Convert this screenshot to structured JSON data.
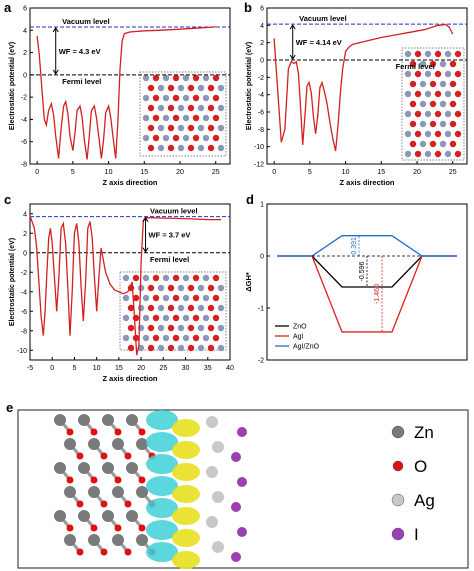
{
  "panels": {
    "a": "a",
    "b": "b",
    "c": "c",
    "d": "d",
    "e": "e"
  },
  "chart_data": [
    {
      "id": "a",
      "type": "line",
      "xlabel": "Z axis direction",
      "ylabel": "Electrostatic potential (eV)",
      "xlim": [
        -1,
        27
      ],
      "ylim": [
        -8,
        6
      ],
      "xticks": [
        0,
        5,
        10,
        15,
        20,
        25
      ],
      "yticks": [
        -8,
        -6,
        -4,
        -2,
        0,
        2,
        4,
        6
      ],
      "vacuum_level": 4.3,
      "fermi_level": 0,
      "vacuum_label": "Vacuum level",
      "fermi_label": "Fermi level",
      "wf_label": "WF = 4.3 eV",
      "x": [
        0,
        0.3,
        0.7,
        1.0,
        1.3,
        1.6,
        2.0,
        2.3,
        2.6,
        3.0,
        3.3,
        3.7,
        4.0,
        4.3,
        4.6,
        5.0,
        5.3,
        5.6,
        6.0,
        6.3,
        6.6,
        7.0,
        7.3,
        7.6,
        8.0,
        8.3,
        8.6,
        9.0,
        9.3,
        9.6,
        10.0,
        10.3,
        10.6,
        11.0,
        11.3,
        11.6,
        11.9,
        12.2,
        13,
        15,
        17,
        20,
        23,
        25
      ],
      "y": [
        3.5,
        1.8,
        -1.5,
        -4.0,
        -4.5,
        -3.2,
        -2.6,
        -3.6,
        -5.5,
        -7.5,
        -5.2,
        -2.8,
        -2.4,
        -3.5,
        -5.5,
        -6.8,
        -5.2,
        -3.2,
        -2.8,
        -3.8,
        -5.8,
        -7.6,
        -5.5,
        -3.2,
        -2.8,
        -3.8,
        -5.4,
        -7.5,
        -5.8,
        -3.4,
        -2.8,
        -3.8,
        -5.5,
        -7.5,
        -4.2,
        0.5,
        3.0,
        3.7,
        3.85,
        3.95,
        4.0,
        4.1,
        4.22,
        4.3
      ]
    },
    {
      "id": "b",
      "type": "line",
      "xlabel": "Z axis direction",
      "ylabel": "Electrostatic potential (eV)",
      "xlim": [
        -1,
        27
      ],
      "ylim": [
        -12,
        6
      ],
      "xticks": [
        0,
        5,
        10,
        15,
        20,
        25
      ],
      "yticks": [
        -12,
        -10,
        -8,
        -6,
        -4,
        -2,
        0,
        2,
        4,
        6
      ],
      "vacuum_level": 4.14,
      "fermi_level": 0,
      "vacuum_label": "Vacuum level",
      "fermi_label": "Fermi level",
      "wf_label": "WF = 4.14 eV",
      "x": [
        0,
        0.5,
        1.0,
        1.5,
        2.0,
        2.4,
        2.8,
        3.1,
        3.4,
        3.7,
        4.0,
        4.3,
        4.6,
        4.9,
        5.2,
        5.5,
        5.8,
        6.1,
        6.4,
        6.7,
        7.0,
        7.4,
        7.8,
        8.2,
        8.6,
        9.0,
        9.3,
        9.6,
        10.0,
        10.5,
        11,
        13,
        15,
        17,
        19,
        21,
        23,
        24,
        24.5,
        25
      ],
      "y": [
        2.5,
        -3.5,
        -9.5,
        -8.0,
        -1.0,
        -0.2,
        -0.4,
        -0.2,
        -1.5,
        -5.5,
        -9.8,
        -6.5,
        -3.0,
        -2.6,
        -3.8,
        -6.5,
        -8.5,
        -6.5,
        -3.2,
        -2.6,
        -3.5,
        -5.0,
        -7.2,
        -9.0,
        -10.5,
        -7.0,
        -3.5,
        -1.0,
        1.0,
        1.5,
        1.8,
        2.2,
        2.6,
        2.9,
        3.2,
        3.5,
        4.0,
        4.1,
        3.8,
        3.0
      ]
    },
    {
      "id": "c",
      "type": "line",
      "xlabel": "Z axis direction",
      "ylabel": "Electrostatic potential (eV)",
      "xlim": [
        -5,
        40
      ],
      "ylim": [
        -11,
        5
      ],
      "xticks": [
        -5,
        0,
        5,
        10,
        15,
        20,
        25,
        30,
        35,
        40
      ],
      "yticks": [
        -10,
        -8,
        -6,
        -4,
        -2,
        0,
        2,
        4
      ],
      "vacuum_level": 3.7,
      "fermi_level": 0,
      "vacuum_label": "Vacuum level",
      "fermi_label": "Fermi level",
      "wf_label": "WF = 3.7 eV",
      "x": [
        -5,
        -4.0,
        -3.5,
        -3.0,
        -2.5,
        -2.0,
        -1.6,
        -1.2,
        -0.8,
        -0.4,
        0,
        0.5,
        1.0,
        1.5,
        2.0,
        2.5,
        3.0,
        3.5,
        4.0,
        4.5,
        5.0,
        5.5,
        6.0,
        6.5,
        7.0,
        7.5,
        8.0,
        8.5,
        9.0,
        9.5,
        10.0,
        10.5,
        11.0,
        12,
        13,
        14,
        15,
        16,
        17,
        18,
        18.5,
        19.0,
        19.5,
        20.0,
        20.5,
        21,
        22,
        25,
        30,
        35,
        38
      ],
      "y": [
        3.8,
        2.5,
        0.5,
        -3.0,
        -6.5,
        -8.5,
        -6.0,
        -2.0,
        1.5,
        2.5,
        1.0,
        -2.5,
        -6.0,
        -2.5,
        2.5,
        3.0,
        1.0,
        -3.5,
        -8.5,
        -4.0,
        2.0,
        3.0,
        1.0,
        -3.5,
        -7.0,
        -3.0,
        2.5,
        3.2,
        1.5,
        -2.5,
        -6.0,
        -2.5,
        0.5,
        -2.0,
        -3.2,
        -3.8,
        -4.0,
        -4.2,
        -4.0,
        -3.0,
        -6.5,
        -10.5,
        -9.5,
        -1.0,
        3.3,
        3.6,
        3.6,
        3.55,
        3.5,
        3.4,
        3.4
      ]
    },
    {
      "id": "d",
      "type": "line",
      "ylabel": "ΔGH*",
      "ylim": [
        -2,
        1
      ],
      "yticks": [
        -2,
        -1,
        0,
        1
      ],
      "series": [
        {
          "name": "ZnO",
          "color": "#000000",
          "level": -0.596,
          "value_label": "-0.596"
        },
        {
          "name": "AgI",
          "color": "#e02020",
          "level": -1.46,
          "value_label": "-1.460"
        },
        {
          "name": "AgI/ZnO",
          "color": "#1f6fd0",
          "level": 0.391,
          "value_label": "0.391"
        }
      ]
    }
  ],
  "legend_e": [
    {
      "label": "Zn",
      "color": "#7a7a7a"
    },
    {
      "label": "O",
      "color": "#e01010"
    },
    {
      "label": "Ag",
      "color": "#c8c8c8"
    },
    {
      "label": "I",
      "color": "#9a3fb4"
    }
  ]
}
